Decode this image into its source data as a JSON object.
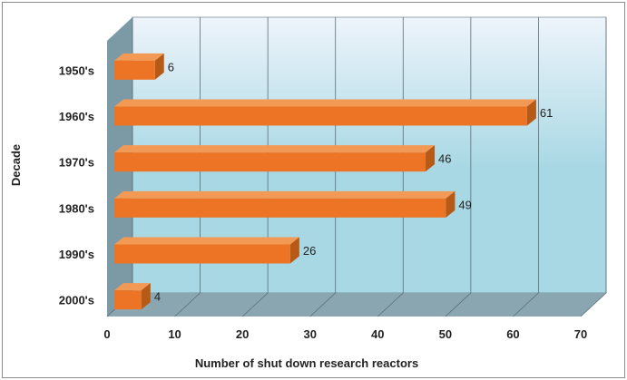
{
  "chart_data": {
    "type": "bar",
    "orientation": "horizontal",
    "style": "3d",
    "title": "",
    "xlabel": "Number of shut down research reactors",
    "ylabel": "Decade",
    "categories": [
      "1950's",
      "1960's",
      "1970's",
      "1980's",
      "1990's",
      "2000's"
    ],
    "values": [
      6,
      61,
      46,
      49,
      26,
      4
    ],
    "xlim": [
      0,
      70
    ],
    "xticks": [
      0,
      10,
      20,
      30,
      40,
      50,
      60,
      70
    ],
    "grid": true,
    "legend": "none",
    "colors": {
      "bar_front": "#ec7424",
      "bar_top": "#f29a55",
      "bar_side": "#b85a17",
      "back_wall_top": "#eef4fb",
      "back_wall_bottom": "#a8d8e4",
      "side_wall": "#7c9aa6",
      "floor": "#8aa6b0",
      "grid": "#5b6d76"
    }
  }
}
